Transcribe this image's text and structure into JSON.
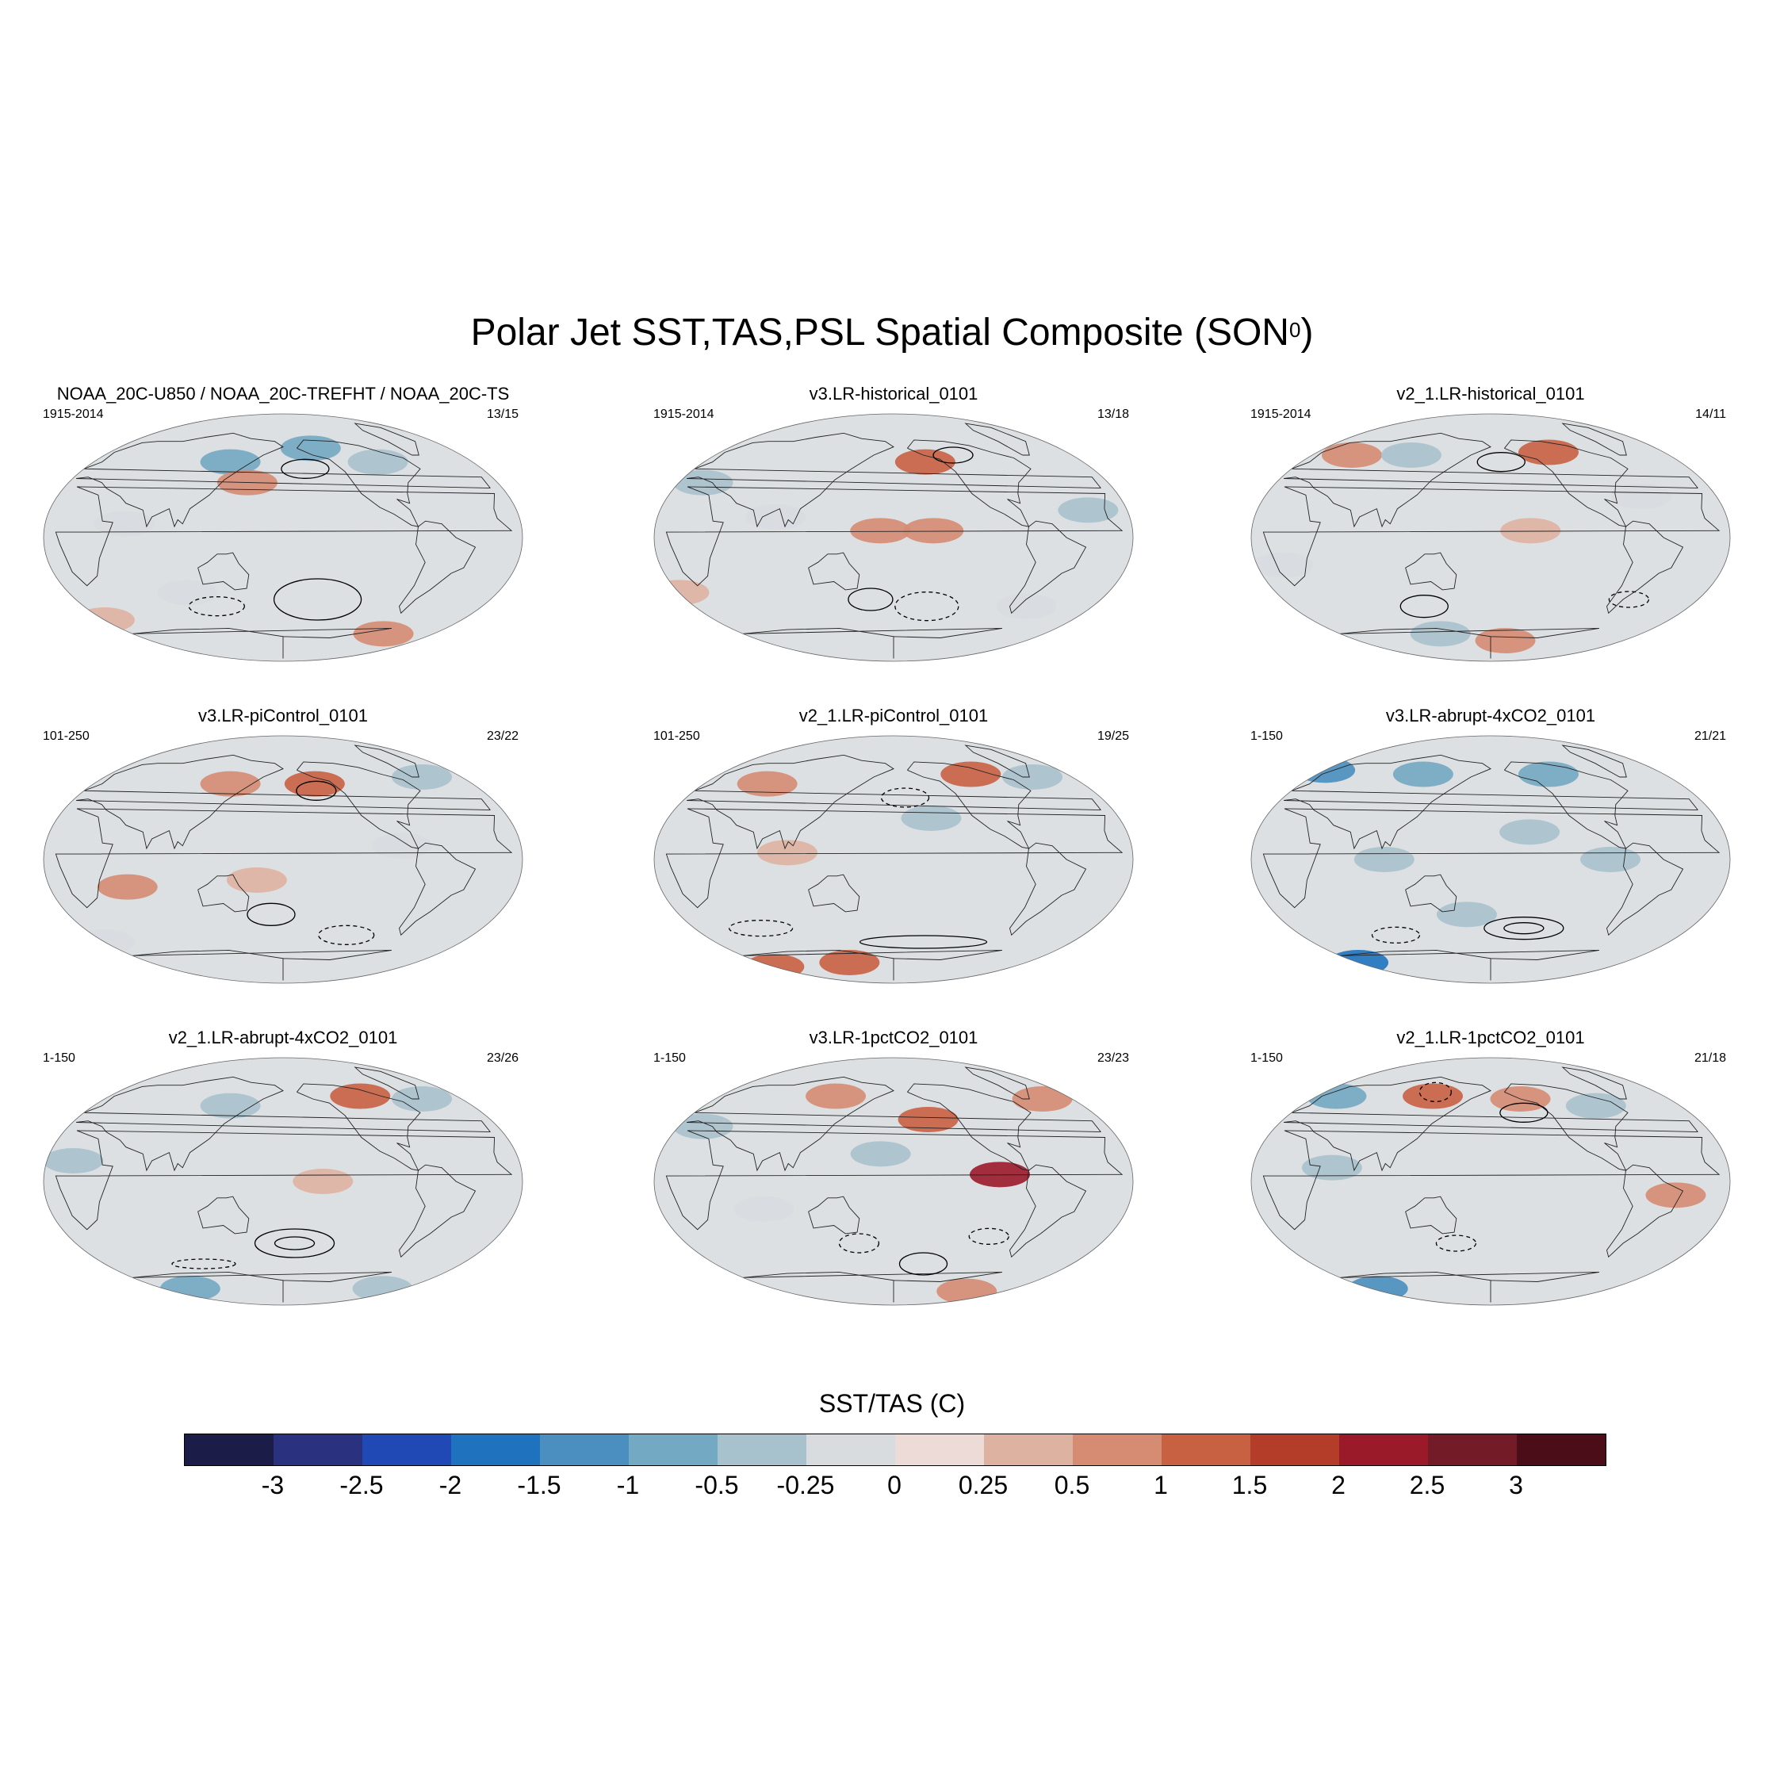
{
  "figure": {
    "title": "Polar Jet SST,TAS,PSL Spatial Composite (SON",
    "title_superscript": "0",
    "title_end": ")"
  },
  "panels": [
    {
      "title": "NOAA_20C-U850 / NOAA_20C-TREFHT / NOAA_20C-TS",
      "years": "1915-2014",
      "count": "13/15",
      "anomalies": [
        {
          "lon": -150,
          "lat": 65,
          "value": -1.0
        },
        {
          "lon": 130,
          "lat": 55,
          "value": -1.0
        },
        {
          "lon": -90,
          "lat": 55,
          "value": -0.5
        },
        {
          "lon": 150,
          "lat": 40,
          "value": 0.5
        },
        {
          "lon": 0,
          "lat": -60,
          "value": 0.25
        },
        {
          "lon": 60,
          "lat": 10,
          "value": -0.25
        },
        {
          "lon": -60,
          "lat": -70,
          "value": 0.5
        },
        {
          "lon": 100,
          "lat": -40,
          "value": -0.25
        }
      ]
    },
    {
      "title": "v3.LR-historical_0101",
      "years": "1915-2014",
      "count": "13/18",
      "anomalies": [
        {
          "lon": -150,
          "lat": 55,
          "value": 1.0
        },
        {
          "lon": -150,
          "lat": 5,
          "value": 0.5
        },
        {
          "lon": 170,
          "lat": 5,
          "value": 0.5
        },
        {
          "lon": 20,
          "lat": 40,
          "value": -0.5
        },
        {
          "lon": -30,
          "lat": 20,
          "value": -0.5
        },
        {
          "lon": 90,
          "lat": 15,
          "value": -0.25
        },
        {
          "lon": -60,
          "lat": -50,
          "value": -0.25
        },
        {
          "lon": 0,
          "lat": -40,
          "value": 0.25
        }
      ]
    },
    {
      "title": "v2_1.LR-historical_0101",
      "years": "1915-2014",
      "count": "14/11",
      "anomalies": [
        {
          "lon": -120,
          "lat": 62,
          "value": 1.0
        },
        {
          "lon": 40,
          "lat": 60,
          "value": 0.5
        },
        {
          "lon": 100,
          "lat": 60,
          "value": -0.5
        },
        {
          "lon": -150,
          "lat": 5,
          "value": 0.25
        },
        {
          "lon": -160,
          "lat": -75,
          "value": 0.5
        },
        {
          "lon": 20,
          "lat": -20,
          "value": -0.25
        },
        {
          "lon": -60,
          "lat": 30,
          "value": -0.25
        },
        {
          "lon": 120,
          "lat": -70,
          "value": -0.5
        }
      ]
    },
    {
      "title": "v3.LR-piControl_0101",
      "years": "101-250",
      "count": "23/22",
      "anomalies": [
        {
          "lon": -150,
          "lat": 55,
          "value": 1.0
        },
        {
          "lon": 130,
          "lat": 55,
          "value": 0.5
        },
        {
          "lon": -40,
          "lat": 60,
          "value": -0.5
        },
        {
          "lon": 60,
          "lat": -20,
          "value": 0.5
        },
        {
          "lon": 160,
          "lat": -15,
          "value": 0.25
        },
        {
          "lon": -90,
          "lat": 10,
          "value": -0.25
        },
        {
          "lon": 0,
          "lat": -60,
          "value": -0.25
        }
      ]
    },
    {
      "title": "v2_1.LR-piControl_0101",
      "years": "101-250",
      "count": "19/25",
      "anomalies": [
        {
          "lon": -100,
          "lat": 62,
          "value": 1.0
        },
        {
          "lon": 60,
          "lat": 55,
          "value": 0.5
        },
        {
          "lon": -40,
          "lat": 60,
          "value": -0.5
        },
        {
          "lon": -150,
          "lat": 30,
          "value": -0.5
        },
        {
          "lon": 0,
          "lat": -78,
          "value": 1.0
        },
        {
          "lon": 120,
          "lat": -75,
          "value": 1.0
        },
        {
          "lon": 100,
          "lat": 5,
          "value": 0.25
        }
      ]
    },
    {
      "title": "v3.LR-abrupt-4xCO2_0101",
      "years": "1-150",
      "count": "21/21",
      "anomalies": [
        {
          "lon": 0,
          "lat": 65,
          "value": -1.5
        },
        {
          "lon": 110,
          "lat": 62,
          "value": -1.0
        },
        {
          "lon": -120,
          "lat": 62,
          "value": -1.0
        },
        {
          "lon": 0,
          "lat": -75,
          "value": -2.0
        },
        {
          "lon": -90,
          "lat": 0,
          "value": -0.5
        },
        {
          "lon": 100,
          "lat": 0,
          "value": -0.5
        },
        {
          "lon": 160,
          "lat": -40,
          "value": -0.5
        },
        {
          "lon": -150,
          "lat": 20,
          "value": -0.5
        }
      ]
    },
    {
      "title": "v2_1.LR-abrupt-4xCO2_0101",
      "years": "1-150",
      "count": "23/26",
      "anomalies": [
        {
          "lon": -100,
          "lat": 62,
          "value": 1.0
        },
        {
          "lon": 130,
          "lat": 55,
          "value": -0.5
        },
        {
          "lon": -40,
          "lat": 60,
          "value": -0.5
        },
        {
          "lon": 20,
          "lat": 15,
          "value": -0.5
        },
        {
          "lon": -150,
          "lat": 0,
          "value": 0.25
        },
        {
          "lon": 40,
          "lat": -78,
          "value": -1.0
        },
        {
          "lon": -30,
          "lat": -78,
          "value": -0.5
        }
      ]
    },
    {
      "title": "v3.LR-1pctCO2_0101",
      "years": "1-150",
      "count": "23/23",
      "anomalies": [
        {
          "lon": -100,
          "lat": 5,
          "value": 2.0
        },
        {
          "lon": -150,
          "lat": 45,
          "value": 1.0
        },
        {
          "lon": 170,
          "lat": 20,
          "value": -0.5
        },
        {
          "lon": -30,
          "lat": 60,
          "value": 0.5
        },
        {
          "lon": 120,
          "lat": 62,
          "value": 0.5
        },
        {
          "lon": -60,
          "lat": -80,
          "value": 0.5
        },
        {
          "lon": 20,
          "lat": 40,
          "value": -0.5
        },
        {
          "lon": 80,
          "lat": -20,
          "value": -0.25
        }
      ]
    },
    {
      "title": "v2_1.LR-1pctCO2_0101",
      "years": "1-150",
      "count": "21/18",
      "anomalies": [
        {
          "lon": 20,
          "lat": 62,
          "value": -1.0
        },
        {
          "lon": 120,
          "lat": 62,
          "value": 1.0
        },
        {
          "lon": -150,
          "lat": 60,
          "value": 0.5
        },
        {
          "lon": -80,
          "lat": 55,
          "value": -0.5
        },
        {
          "lon": 60,
          "lat": 10,
          "value": -0.5
        },
        {
          "lon": 10,
          "lat": -78,
          "value": -1.5
        },
        {
          "lon": -40,
          "lat": -10,
          "value": 0.5
        }
      ]
    }
  ],
  "colorbar": {
    "title": "SST/TAS (C)",
    "levels": [
      -3,
      -2.5,
      -2,
      -1.5,
      -1,
      -0.5,
      -0.25,
      0,
      0.25,
      0.5,
      1,
      1.5,
      2,
      2.5,
      3
    ],
    "tick_labels": [
      "-3",
      "-2.5",
      "-2",
      "-1.5",
      "-1",
      "-0.5",
      "-0.25",
      "0",
      "0.25",
      "0.5",
      "1",
      "1.5",
      "2",
      "2.5",
      "3"
    ],
    "colors": [
      "#1b1d48",
      "#2a317e",
      "#2149b6",
      "#1f73be",
      "#4a8fbf",
      "#73a9c2",
      "#a8c2cd",
      "#d8dcdf",
      "#ecdbd7",
      "#deb2a1",
      "#d58c72",
      "#c86141",
      "#b43d2a",
      "#9a1a2a",
      "#741b28",
      "#4b0d18"
    ],
    "land_color": "#dde0e3"
  }
}
